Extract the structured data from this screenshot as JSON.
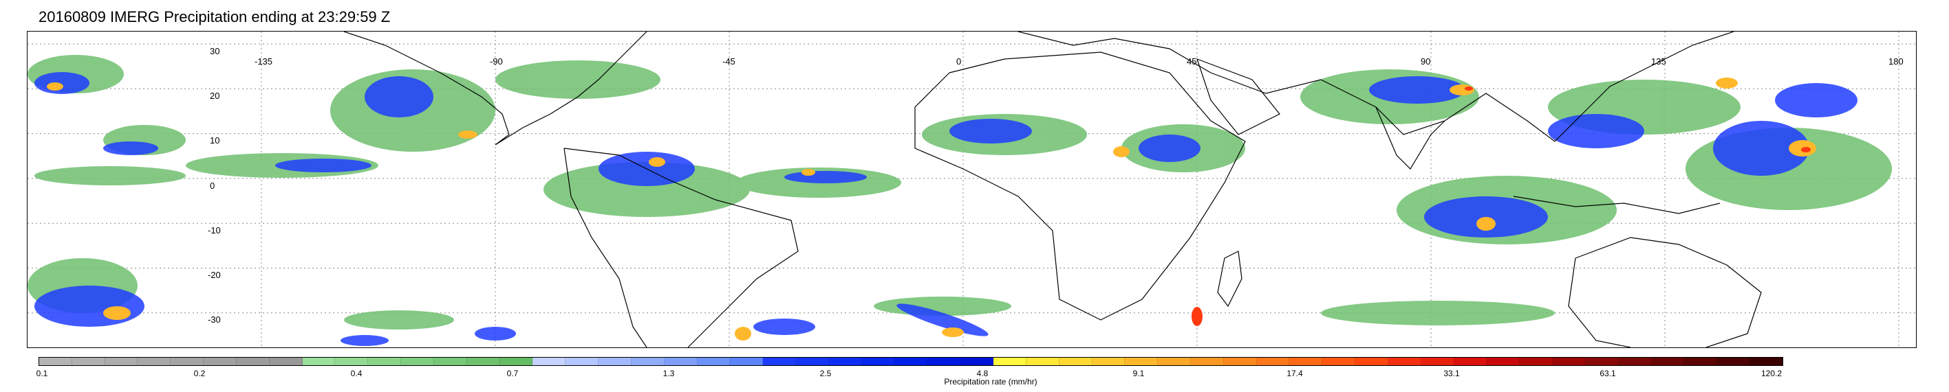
{
  "title": "20160809 IMERG Precipitation ending at 23:29:59 Z",
  "map": {
    "latitude_labels": [
      "30",
      "20",
      "10",
      "0",
      "-10",
      "-20",
      "-30"
    ],
    "longitude_labels": [
      "-135",
      "-90",
      "-45",
      "0",
      "45",
      "90",
      "135",
      "180"
    ],
    "grid": "dotted",
    "coastlines": true
  },
  "colorbar": {
    "label": "Precipitation rate (mm/hr)",
    "ticks": [
      "0.1",
      "0.2",
      "0.4",
      "0.7",
      "1.3",
      "2.5",
      "4.8",
      "9.1",
      "17.4",
      "33.1",
      "63.1",
      "120.2"
    ],
    "colors": [
      "#b4b4b4",
      "#b0b0b0",
      "#acacac",
      "#a8a8a8",
      "#a4a4a4",
      "#a0a0a0",
      "#9c9c9c",
      "#989898",
      "#9be09b",
      "#92da92",
      "#89d489",
      "#80ce80",
      "#77c877",
      "#6ec26e",
      "#65bc65",
      "#c6d2ff",
      "#b4c6ff",
      "#a2b9ff",
      "#90acff",
      "#7e9fff",
      "#6c92ff",
      "#5a85ff",
      "#1c3cff",
      "#1535fa",
      "#0e2ef5",
      "#0827ef",
      "#0020e8",
      "#0019e0",
      "#0012d8",
      "#fff83c",
      "#ffe838",
      "#ffd834",
      "#ffc830",
      "#ffb82c",
      "#ffa828",
      "#ff9822",
      "#ff881e",
      "#ff781a",
      "#ff6816",
      "#ff5812",
      "#ff480e",
      "#f53010",
      "#e8200e",
      "#dc100c",
      "#c8080a",
      "#b20808",
      "#9c0606",
      "#8a0a0a",
      "#7a0808",
      "#6a0606",
      "#5a0404",
      "#4a0202",
      "#3a0000"
    ]
  }
}
